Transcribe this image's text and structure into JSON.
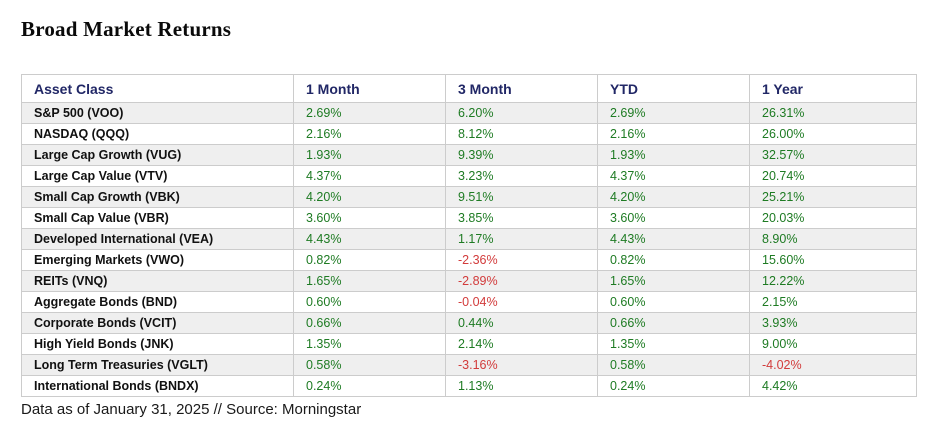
{
  "title": "Broad Market Returns",
  "footer": "Data as of January 31, 2025 // Source: Morningstar",
  "colors": {
    "positive": "#1E7B23",
    "negative": "#D23B3B",
    "header_text": "#212766",
    "stripe": "#EFEFEF",
    "border": "#CCCCCC"
  },
  "table": {
    "columns": [
      "Asset Class",
      "1 Month",
      "3 Month",
      "YTD",
      "1 Year"
    ],
    "rows": [
      {
        "asset": "S&P 500 (VOO)",
        "values": [
          "2.69%",
          "6.20%",
          "2.69%",
          "26.31%"
        ]
      },
      {
        "asset": "NASDAQ (QQQ)",
        "values": [
          "2.16%",
          "8.12%",
          "2.16%",
          "26.00%"
        ]
      },
      {
        "asset": "Large Cap Growth (VUG)",
        "values": [
          "1.93%",
          "9.39%",
          "1.93%",
          "32.57%"
        ]
      },
      {
        "asset": "Large Cap Value (VTV)",
        "values": [
          "4.37%",
          "3.23%",
          "4.37%",
          "20.74%"
        ]
      },
      {
        "asset": "Small Cap Growth (VBK)",
        "values": [
          "4.20%",
          "9.51%",
          "4.20%",
          "25.21%"
        ]
      },
      {
        "asset": "Small Cap Value (VBR)",
        "values": [
          "3.60%",
          "3.85%",
          "3.60%",
          "20.03%"
        ]
      },
      {
        "asset": "Developed International (VEA)",
        "values": [
          "4.43%",
          "1.17%",
          "4.43%",
          "8.90%"
        ]
      },
      {
        "asset": "Emerging Markets (VWO)",
        "values": [
          "0.82%",
          "-2.36%",
          "0.82%",
          "15.60%"
        ]
      },
      {
        "asset": "REITs (VNQ)",
        "values": [
          "1.65%",
          "-2.89%",
          "1.65%",
          "12.22%"
        ]
      },
      {
        "asset": "Aggregate Bonds (BND)",
        "values": [
          "0.60%",
          "-0.04%",
          "0.60%",
          "2.15%"
        ]
      },
      {
        "asset": "Corporate Bonds (VCIT)",
        "values": [
          "0.66%",
          "0.44%",
          "0.66%",
          "3.93%"
        ]
      },
      {
        "asset": "High Yield Bonds (JNK)",
        "values": [
          "1.35%",
          "2.14%",
          "1.35%",
          "9.00%"
        ]
      },
      {
        "asset": "Long Term Treasuries (VGLT)",
        "values": [
          "0.58%",
          "-3.16%",
          "0.58%",
          "-4.02%"
        ]
      },
      {
        "asset": "International Bonds (BNDX)",
        "values": [
          "0.24%",
          "1.13%",
          "0.24%",
          "4.42%"
        ]
      }
    ]
  }
}
